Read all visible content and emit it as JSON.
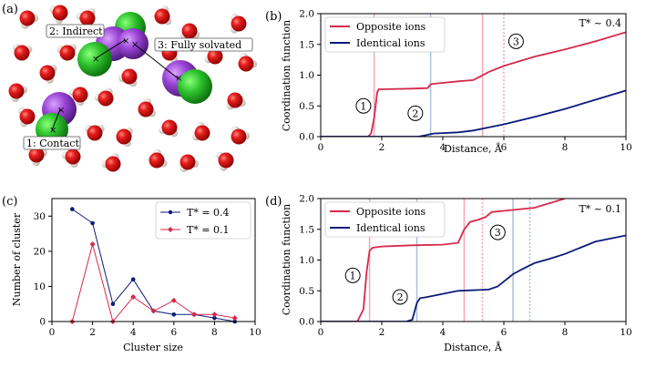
{
  "panels": {
    "a": {
      "label": "(a)",
      "annotations": [
        "2: Indirect",
        "3: Fully solvated",
        "1: Contact"
      ]
    },
    "b": {
      "label": "(b)",
      "temp_label": "T* ~ 0.4",
      "xlabel": "Distance, Å",
      "ylabel": "Coordination function",
      "xticks": [
        "0",
        "2",
        "4",
        "6",
        "8",
        "10"
      ],
      "yticks": [
        "0.0",
        "0.5",
        "1.0",
        "1.5",
        "2.0"
      ],
      "legend": [
        "Opposite ions",
        "Identical ions"
      ],
      "markers": [
        "1",
        "2",
        "3"
      ]
    },
    "c": {
      "label": "(c)",
      "xlabel": "Cluster size",
      "ylabel": "Number of cluster",
      "xticks": [
        "0",
        "2",
        "4",
        "6",
        "8",
        "10"
      ],
      "yticks": [
        "0",
        "10",
        "20",
        "30"
      ],
      "legend": [
        "T* = 0.4",
        "T* = 0.1"
      ]
    },
    "d": {
      "label": "(d)",
      "temp_label": "T* ~ 0.1",
      "xlabel": "Distance, Å",
      "ylabel": "Coordination function",
      "xticks": [
        "0",
        "2",
        "4",
        "6",
        "8",
        "10"
      ],
      "yticks": [
        "0.0",
        "0.5",
        "1.0",
        "1.5",
        "2.0"
      ],
      "legend": [
        "Opposite ions",
        "Identical ions"
      ],
      "markers": [
        "1",
        "2",
        "3"
      ]
    }
  },
  "colors": {
    "opposite": "#d6294a",
    "identical": "#0b1a7a",
    "pink": "#f4a6b4",
    "blue": "#a9c0da"
  },
  "chart_data": [
    {
      "panel": "b",
      "type": "line",
      "xlim": [
        0,
        10
      ],
      "ylim": [
        0,
        2
      ],
      "series": [
        {
          "name": "Opposite ions",
          "x": [
            0,
            1.55,
            1.65,
            1.75,
            1.85,
            1.9,
            2.0,
            3.0,
            3.5,
            3.6,
            3.7,
            4.5,
            5.0,
            5.5,
            6.0,
            7.0,
            8.0,
            9.0,
            10.0
          ],
          "y": [
            0,
            0,
            0.05,
            0.3,
            0.72,
            0.77,
            0.77,
            0.78,
            0.79,
            0.85,
            0.86,
            0.9,
            0.92,
            1.05,
            1.15,
            1.3,
            1.42,
            1.55,
            1.7
          ]
        },
        {
          "name": "Identical ions",
          "x": [
            0,
            3.2,
            3.4,
            3.6,
            3.7,
            4.5,
            5.0,
            5.5,
            6.0,
            7.0,
            8.0,
            9.0,
            10.0
          ],
          "y": [
            0,
            0,
            0.02,
            0.04,
            0.05,
            0.07,
            0.1,
            0.15,
            0.2,
            0.32,
            0.45,
            0.6,
            0.75
          ]
        }
      ],
      "vlines": [
        {
          "x": 1.75,
          "color": "pink",
          "style": "solid"
        },
        {
          "x": 3.6,
          "color": "blue",
          "style": "solid"
        },
        {
          "x": 5.3,
          "color": "pink",
          "style": "solid"
        },
        {
          "x": 6.0,
          "color": "pink",
          "style": "dotted"
        }
      ],
      "marker_positions": [
        {
          "x": 1.4,
          "y": 0.5
        },
        {
          "x": 3.1,
          "y": 0.38
        },
        {
          "x": 6.4,
          "y": 1.55
        }
      ]
    },
    {
      "panel": "c",
      "type": "line",
      "xlim": [
        0,
        10
      ],
      "ylim": [
        0,
        35
      ],
      "series": [
        {
          "name": "T* = 0.4",
          "x": [
            1,
            2,
            3,
            4,
            5,
            6,
            7,
            8,
            9
          ],
          "y": [
            32,
            28,
            5,
            12,
            3,
            2,
            2,
            1,
            0
          ]
        },
        {
          "name": "T* = 0.1",
          "x": [
            1,
            2,
            3,
            4,
            5,
            6,
            7,
            8,
            9
          ],
          "y": [
            0,
            22,
            0,
            7,
            3,
            6,
            2,
            2,
            1
          ]
        }
      ]
    },
    {
      "panel": "d",
      "type": "line",
      "xlim": [
        0,
        10
      ],
      "ylim": [
        0,
        2
      ],
      "series": [
        {
          "name": "Opposite ions",
          "x": [
            0,
            1.2,
            1.4,
            1.5,
            1.6,
            1.7,
            2.0,
            3.0,
            4.0,
            4.5,
            4.7,
            4.9,
            5.2,
            5.4,
            5.6,
            6.0,
            7.0,
            8.0
          ],
          "y": [
            0,
            0,
            0.2,
            0.8,
            1.15,
            1.2,
            1.22,
            1.24,
            1.25,
            1.28,
            1.5,
            1.62,
            1.66,
            1.7,
            1.78,
            1.8,
            1.85,
            2.0
          ]
        },
        {
          "name": "Identical ions",
          "x": [
            0,
            2.8,
            3.0,
            3.15,
            3.25,
            3.5,
            4.0,
            4.5,
            5.5,
            5.8,
            6.0,
            6.3,
            6.6,
            7.0,
            7.5,
            8.0,
            8.5,
            9.0,
            10.0
          ],
          "y": [
            0,
            0,
            0.03,
            0.3,
            0.38,
            0.4,
            0.45,
            0.5,
            0.52,
            0.57,
            0.65,
            0.77,
            0.85,
            0.95,
            1.02,
            1.1,
            1.2,
            1.3,
            1.4
          ]
        }
      ],
      "vlines": [
        {
          "x": 1.6,
          "color": "pink",
          "style": "solid"
        },
        {
          "x": 3.15,
          "color": "blue",
          "style": "solid"
        },
        {
          "x": 4.7,
          "color": "pink",
          "style": "solid"
        },
        {
          "x": 5.3,
          "color": "pink",
          "style": "dotted"
        },
        {
          "x": 6.3,
          "color": "blue",
          "style": "solid"
        },
        {
          "x": 6.85,
          "color": "blue",
          "style": "dotted"
        }
      ],
      "marker_positions": [
        {
          "x": 1.05,
          "y": 0.75
        },
        {
          "x": 2.6,
          "y": 0.4
        },
        {
          "x": 5.8,
          "y": 1.45
        }
      ]
    }
  ]
}
